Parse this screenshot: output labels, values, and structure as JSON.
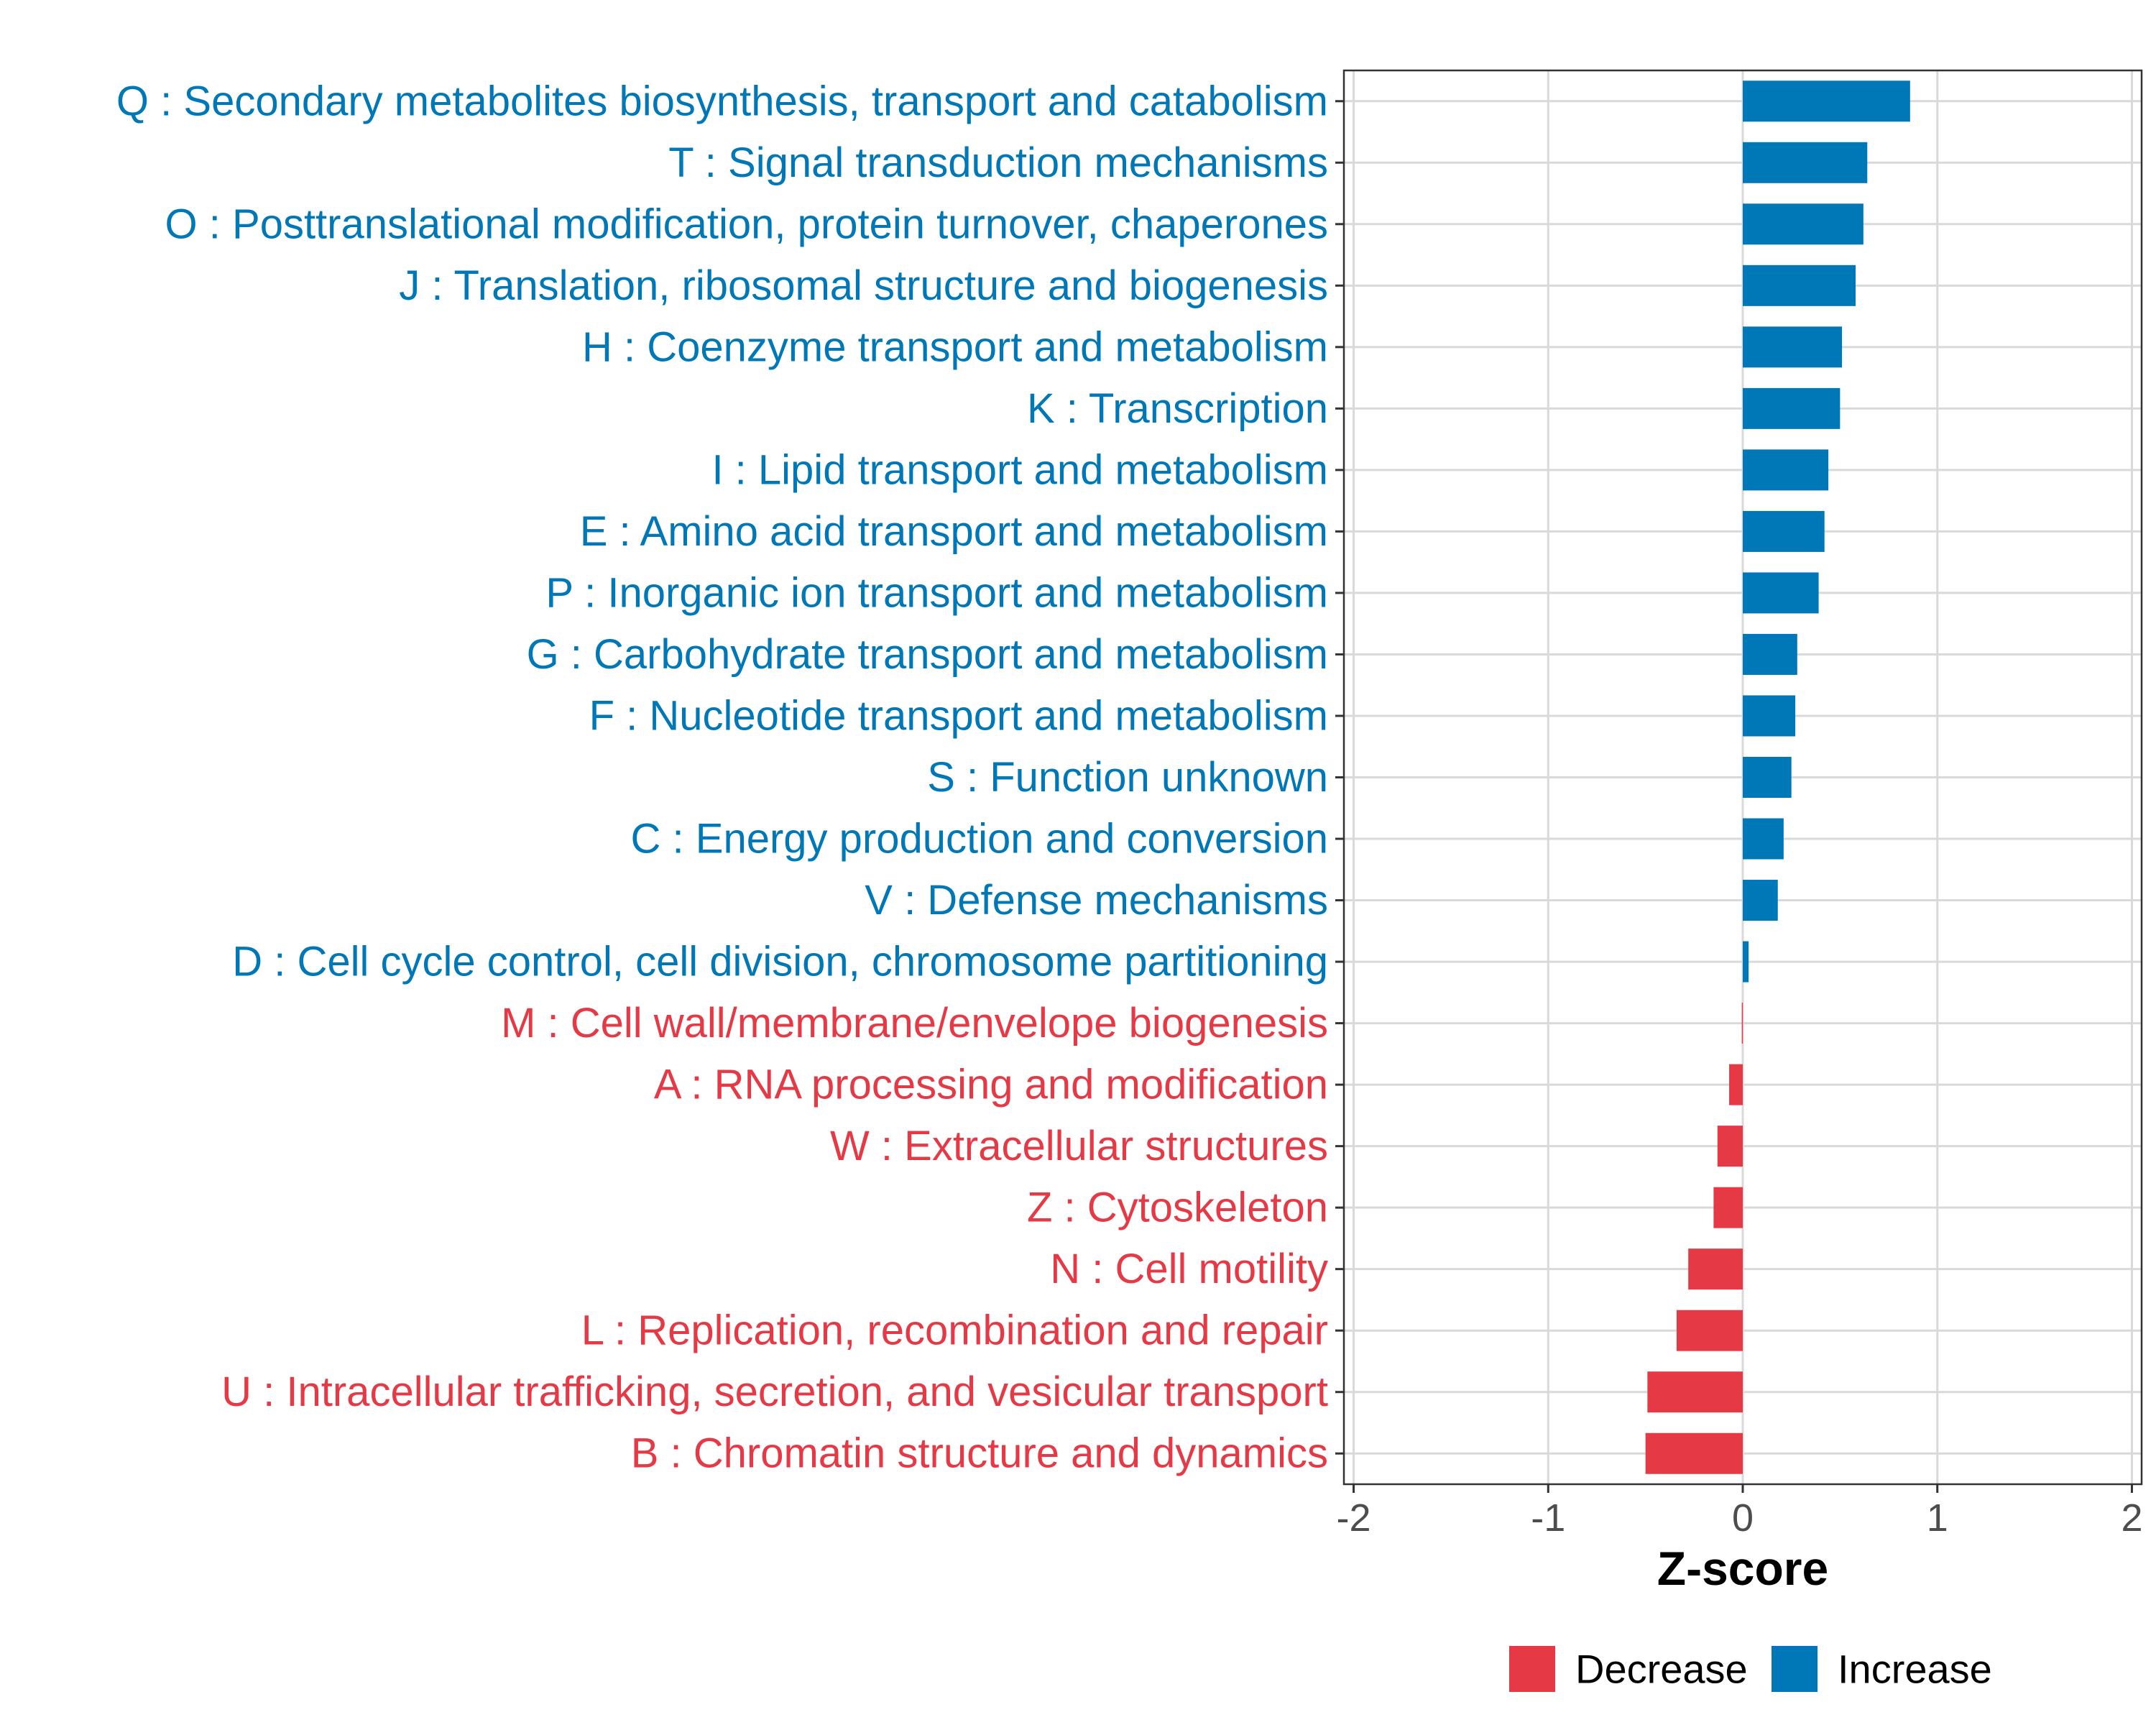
{
  "chart_data": {
    "type": "bar",
    "orientation": "horizontal",
    "xlabel": "Z-score",
    "xlim": [
      -2.05,
      2.05
    ],
    "xticks": [
      -2,
      -1,
      0,
      1,
      2
    ],
    "xtick_labels": [
      "-2",
      "-1",
      "0",
      "1",
      "2"
    ],
    "grid": true,
    "legend_position": "bottom",
    "legend": [
      {
        "label": "Decrease",
        "color": "#E63946"
      },
      {
        "label": "Increase",
        "color": "#0077B6"
      }
    ],
    "colors": {
      "Decrease": "#E63946",
      "Increase": "#0077B6"
    },
    "categories": [
      "Q : Secondary metabolites biosynthesis, transport and catabolism",
      "T : Signal transduction mechanisms",
      "O : Posttranslational modification, protein turnover, chaperones",
      "J : Translation, ribosomal structure and biogenesis",
      "H : Coenzyme transport and metabolism",
      "K : Transcription",
      "I : Lipid transport and metabolism",
      "E : Amino acid transport and metabolism",
      "P : Inorganic ion transport and metabolism",
      "G : Carbohydrate transport and metabolism",
      "F : Nucleotide transport and metabolism",
      "S : Function unknown",
      "C : Energy production and conversion",
      "V : Defense mechanisms",
      "D : Cell cycle control, cell division, chromosome partitioning",
      "M : Cell wall/membrane/envelope biogenesis",
      "A : RNA processing and modification",
      "W : Extracellular structures",
      "Z : Cytoskeleton",
      "N : Cell motility",
      "L : Replication, recombination and repair",
      "U : Intracellular trafficking, secretion, and vesicular transport",
      "B : Chromatin structure and dynamics"
    ],
    "values": [
      0.86,
      0.64,
      0.62,
      0.58,
      0.51,
      0.5,
      0.44,
      0.42,
      0.39,
      0.28,
      0.27,
      0.25,
      0.21,
      0.18,
      0.03,
      -0.005,
      -0.07,
      -0.13,
      -0.15,
      -0.28,
      -0.34,
      -0.49,
      -0.5
    ],
    "direction": [
      "Increase",
      "Increase",
      "Increase",
      "Increase",
      "Increase",
      "Increase",
      "Increase",
      "Increase",
      "Increase",
      "Increase",
      "Increase",
      "Increase",
      "Increase",
      "Increase",
      "Increase",
      "Decrease",
      "Decrease",
      "Decrease",
      "Decrease",
      "Decrease",
      "Decrease",
      "Decrease",
      "Decrease"
    ]
  }
}
